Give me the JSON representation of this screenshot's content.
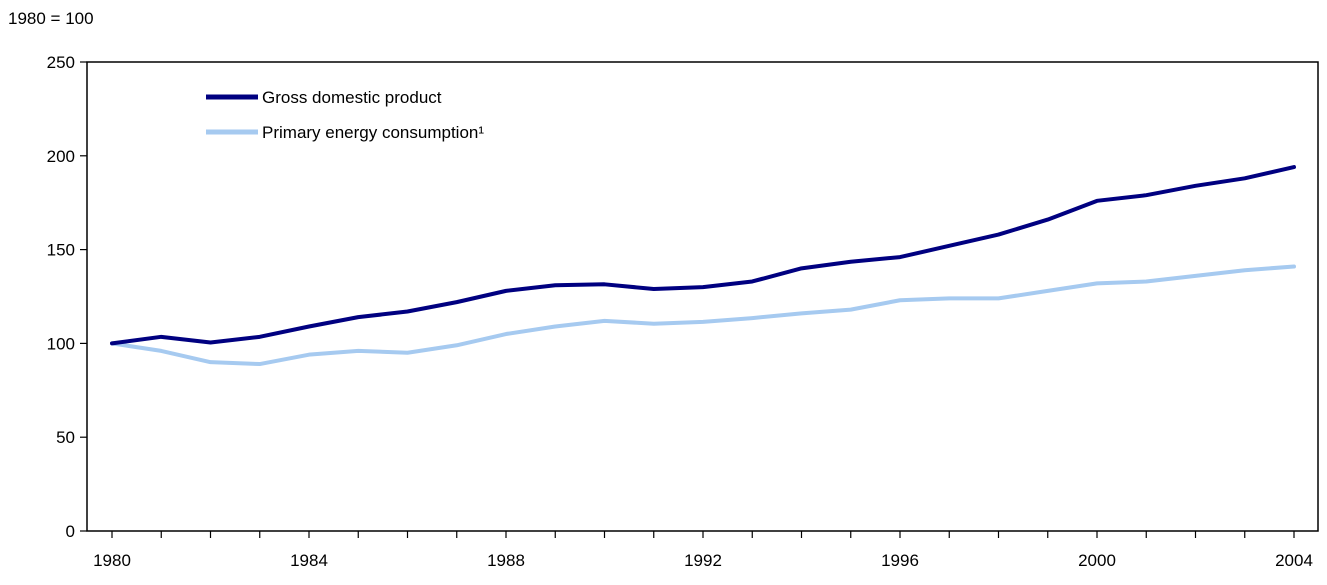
{
  "chart_data": {
    "type": "line",
    "title": "",
    "ylabel": "1980 = 100",
    "xlabel": "",
    "x": [
      1980,
      1981,
      1982,
      1983,
      1984,
      1985,
      1986,
      1987,
      1988,
      1989,
      1990,
      1991,
      1992,
      1993,
      1994,
      1995,
      1996,
      1997,
      1998,
      1999,
      2000,
      2001,
      2002,
      2003,
      2004
    ],
    "x_tick_labels": [
      "1980",
      "1984",
      "1988",
      "1992",
      "1996",
      "2000",
      "2004"
    ],
    "y_tick_labels": [
      "0",
      "50",
      "100",
      "150",
      "200",
      "250"
    ],
    "ylim": [
      0,
      250
    ],
    "grid": false,
    "legend_position": "top-left",
    "series": [
      {
        "name": "Gross domestic product",
        "color": "#000080",
        "values": [
          100,
          103.5,
          100.5,
          103.5,
          109,
          114,
          117,
          122,
          128,
          131,
          131.5,
          129,
          130,
          133,
          140,
          143.5,
          146,
          152,
          158,
          166,
          176,
          179,
          184,
          188,
          194
        ]
      },
      {
        "name": "Primary energy consumption¹",
        "color": "#a6caf0",
        "values": [
          100,
          96,
          90,
          89,
          94,
          96,
          95,
          99,
          105,
          109,
          112,
          110.5,
          111.5,
          113.5,
          116,
          118,
          123,
          124,
          124,
          128,
          132,
          133,
          136,
          139,
          141
        ]
      }
    ]
  }
}
